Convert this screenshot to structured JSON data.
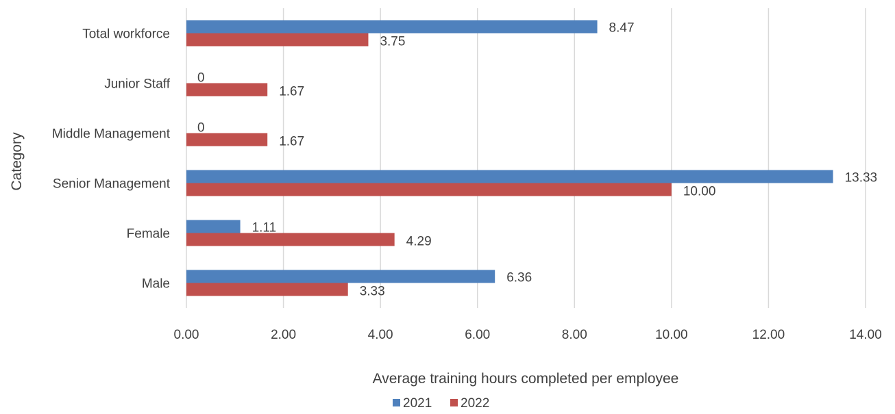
{
  "chart_data": {
    "type": "bar",
    "orientation": "horizontal",
    "categories": [
      "Total workforce",
      "Junior Staff",
      "Middle Management",
      "Senior Management",
      "Female",
      "Male"
    ],
    "series": [
      {
        "name": "2021",
        "color": "#4f81bd",
        "values": [
          8.47,
          0,
          0,
          13.33,
          1.11,
          6.36
        ],
        "labels": [
          "8.47",
          "0",
          "0",
          "13.33",
          "1.11",
          "6.36"
        ]
      },
      {
        "name": "2022",
        "color": "#c0504d",
        "values": [
          3.75,
          1.67,
          1.67,
          10.0,
          4.29,
          3.33
        ],
        "labels": [
          "3.75",
          "1.67",
          "1.67",
          "10.00",
          "4.29",
          "3.33"
        ]
      }
    ],
    "xlabel": "Average training hours completed per employee",
    "ylabel": "Category",
    "xlim": [
      0,
      14
    ],
    "xticks": [
      0,
      2,
      4,
      6,
      8,
      10,
      12,
      14
    ],
    "xtick_labels": [
      "0.00",
      "2.00",
      "4.00",
      "6.00",
      "8.00",
      "10.00",
      "12.00",
      "14.00"
    ],
    "grid": "vertical",
    "legend_position": "bottom"
  }
}
